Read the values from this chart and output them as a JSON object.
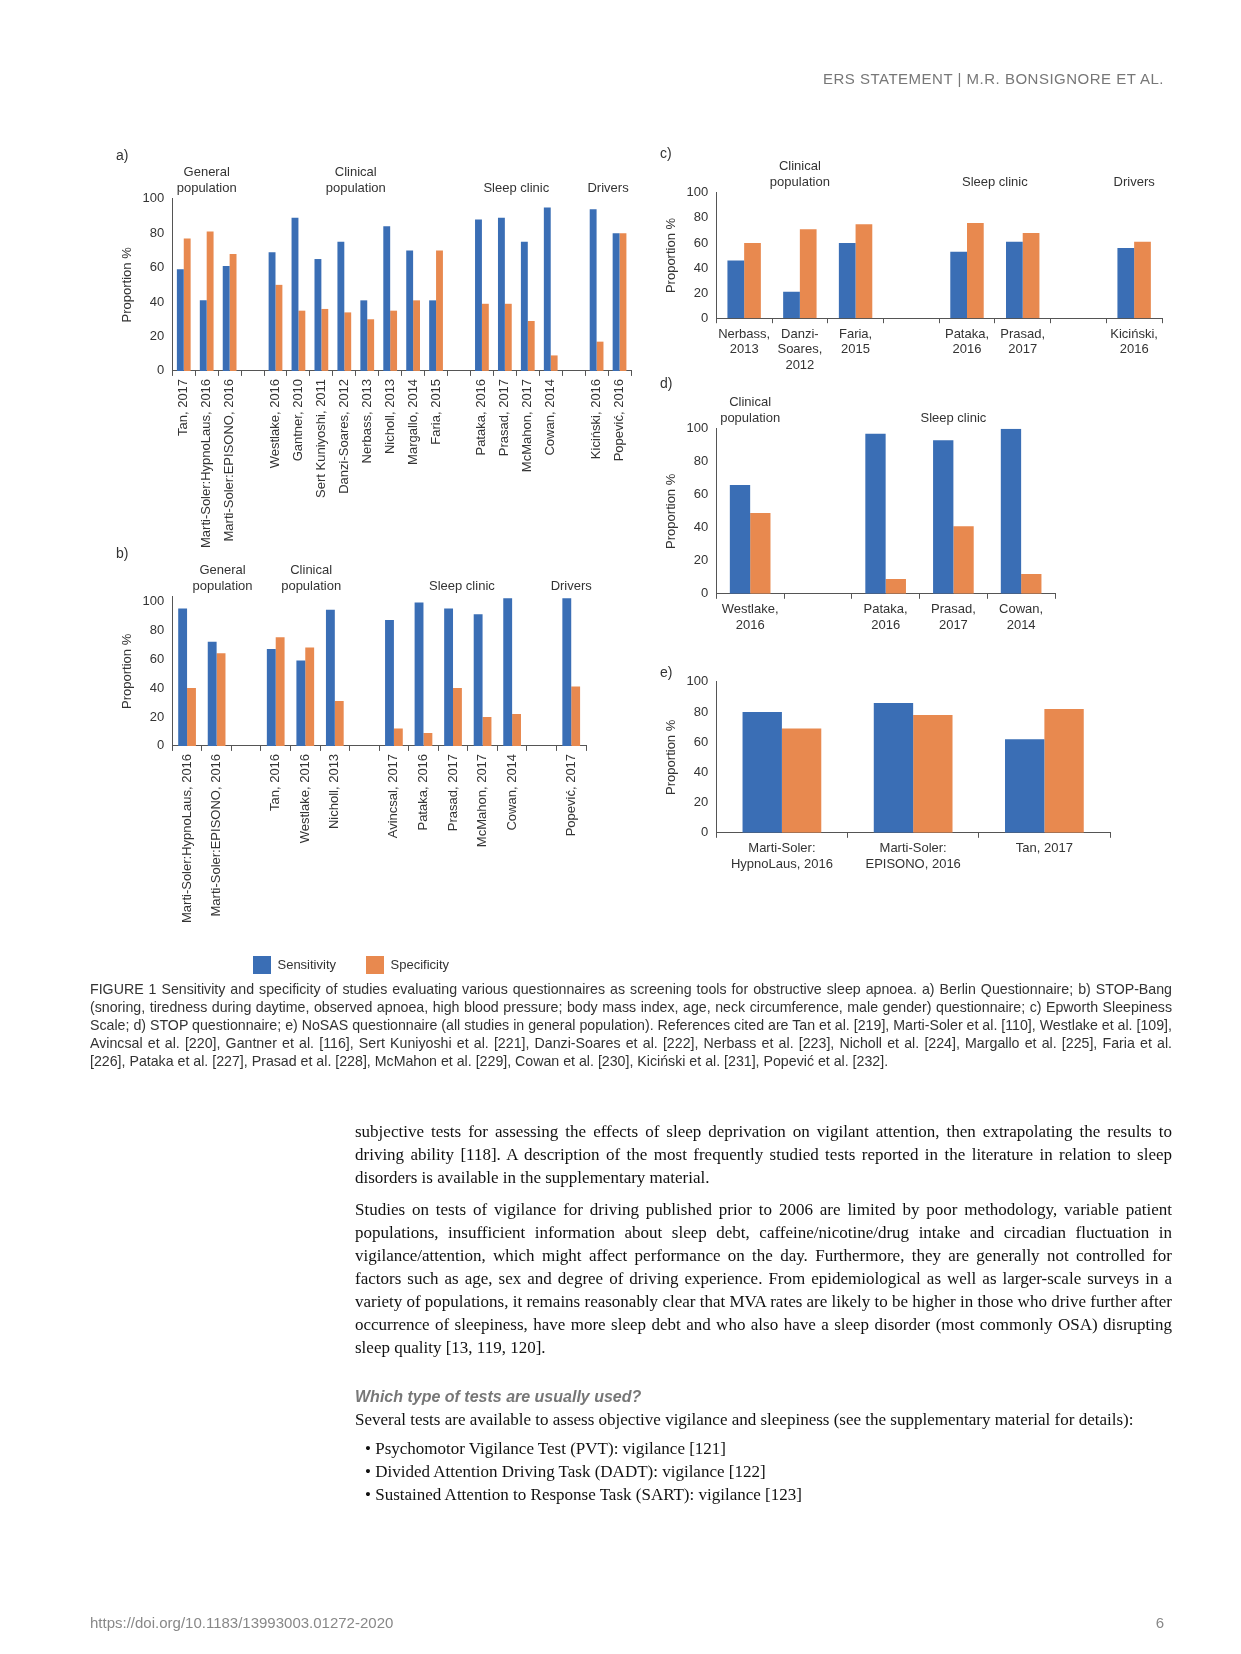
{
  "chart_data": [
    {
      "type": "bar",
      "title": "a)",
      "ylabel": "Proportion %",
      "ylim": [
        0,
        100
      ],
      "yticks": [
        0,
        20,
        40,
        60,
        80,
        100
      ],
      "categories": [
        "Tan, 2017",
        "Marti-Soler:HypnoLaus, 2016",
        "Marti-Soler:EPISONO, 2016",
        null,
        "Westlake, 2016",
        "Gantner, 2010",
        "Sert Kuniyoshi, 2011",
        "Danzi-Soares, 2012",
        "Nerbass, 2013",
        "Nicholl, 2013",
        "Margallo, 2014",
        "Faria, 2015",
        null,
        "Pataka, 2016",
        "Prasad, 2017",
        "McMahon, 2017",
        "Cowan, 2014",
        null,
        "Kiciński, 2016",
        "Popević, 2016"
      ],
      "series": [
        {
          "color": "#3a6eb5",
          "values": [
            59,
            41,
            61,
            null,
            69,
            89,
            65,
            75,
            41,
            84,
            70,
            41,
            null,
            88,
            89,
            75,
            95,
            null,
            94,
            80
          ]
        },
        {
          "color": "#e8894f",
          "values": [
            77,
            81,
            68,
            null,
            50,
            35,
            36,
            34,
            30,
            35,
            41,
            70,
            null,
            39,
            39,
            29,
            9,
            null,
            17,
            80
          ]
        }
      ],
      "annotations": [
        "General population",
        "Clinical population",
        "Sleep clinic",
        "Drivers"
      ]
    },
    {
      "type": "bar",
      "title": "b)",
      "ylabel": "Proportion %",
      "ylim": [
        0,
        103
      ],
      "yticks": [
        0,
        20,
        40,
        60,
        80,
        100
      ],
      "legend": "bottom",
      "categories": [
        "Marti-Soler:HypnoLaus, 2016",
        "Marti-Soler:EPISONO, 2016",
        null,
        "Tan, 2016",
        "Westlake, 2016",
        "Nicholl, 2013",
        null,
        "Avincsal, 2017",
        "Pataka, 2016",
        "Prasad, 2017",
        "McMahon, 2017",
        "Cowan, 2014",
        null,
        "Popević, 2017"
      ],
      "series": [
        {
          "name": "Sensitivity",
          "color": "#3a6eb5",
          "values": [
            95,
            72,
            null,
            67,
            59,
            94,
            null,
            87,
            99,
            95,
            91,
            102,
            null,
            102
          ]
        },
        {
          "name": "Specificity",
          "color": "#e8894f",
          "values": [
            40,
            64,
            null,
            75,
            68,
            31,
            null,
            12,
            9,
            40,
            20,
            22,
            null,
            41
          ]
        }
      ],
      "annotations": [
        "General population",
        "Clinical population",
        "Sleep clinic",
        "Drivers"
      ]
    },
    {
      "type": "bar",
      "title": "c)",
      "ylabel": "Proportion %",
      "ylim": [
        0,
        100
      ],
      "yticks": [
        0,
        20,
        40,
        60,
        80,
        100
      ],
      "categories": [
        "Nerbass, 2013",
        "Danzi-Soares, 2012",
        "Faria, 2015",
        null,
        "Pataka, 2016",
        "Prasad, 2017",
        null,
        "Kiciński, 2016"
      ],
      "series": [
        {
          "color": "#3a6eb5",
          "values": [
            46,
            21,
            60,
            null,
            53,
            61,
            null,
            56
          ]
        },
        {
          "color": "#e8894f",
          "values": [
            60,
            71,
            75,
            null,
            76,
            68,
            null,
            61
          ]
        }
      ],
      "annotations": [
        "Clinical population",
        "Sleep clinic",
        "Drivers"
      ]
    },
    {
      "type": "bar",
      "title": "d)",
      "ylabel": "Proportion %",
      "ylim": [
        0,
        100
      ],
      "yticks": [
        0,
        20,
        40,
        60,
        80,
        100
      ],
      "categories": [
        "Westlake, 2016",
        null,
        "Pataka, 2016",
        "Prasad, 2017",
        "Cowan, 2014"
      ],
      "series": [
        {
          "color": "#3a6eb5",
          "values": [
            66,
            null,
            97,
            93,
            100
          ]
        },
        {
          "color": "#e8894f",
          "values": [
            49,
            null,
            9,
            41,
            12
          ]
        }
      ],
      "annotations": [
        "Clinical population",
        "Sleep clinic"
      ]
    },
    {
      "type": "bar",
      "title": "e)",
      "ylabel": "Proportion %",
      "ylim": [
        0,
        100
      ],
      "yticks": [
        0,
        20,
        40,
        60,
        80,
        100
      ],
      "categories": [
        "Marti-Soler: HypnoLaus, 2016",
        "Marti-Soler: EPISONO, 2016",
        "Tan, 2017"
      ],
      "series": [
        {
          "color": "#3a6eb5",
          "values": [
            80,
            86,
            62
          ]
        },
        {
          "color": "#e8894f",
          "values": [
            69,
            78,
            82
          ]
        }
      ]
    },
    {
      "type": "other",
      "annotations": [
        "ERS STATEMENT | M.R. BONSIGNORE ET AL.",
        "FIGURE 1 Sensitivity and specificity of studies evaluating various questionnaires as screening tools for obstructive sleep apnoea. a) Berlin Questionnaire; b) STOP-Bang (snoring, tiredness during daytime, observed apnoea, high blood pressure; body mass index, age, neck circumference, male gender) questionnaire; c) Epworth Sleepiness Scale; d) STOP questionnaire; e) NoSAS questionnaire (all studies in general population). References cited are Tan et al. [219], Marti-Soler et al. [110], Westlake et al. [109], Avincsal et al. [220], Gantner et al. [116], Sert Kuniyoshi et al. [221], Danzi-Soares et al. [222], Nerbass et al. [223], Nicholl et al. [224], Margallo et al. [225], Faria et al. [226], Pataka et al. [227], Prasad et al. [228], McMahon et al. [229], Cowan et al. [230], Kiciński et al. [231], Popević et al. [232].",
        "subjective tests for assessing the effects of sleep deprivation on vigilant attention, then extrapolating the results to driving ability [118]. A description of the most frequently studied tests reported in the literature in relation to sleep disorders is available in the supplementary material.",
        "Studies on tests of vigilance for driving published prior to 2006 are limited by poor methodology, variable patient populations, insufficient information about sleep debt, caffeine/nicotine/drug intake and circadian fluctuation in vigilance/attention, which might affect performance on the day. Furthermore, they are generally not controlled for factors such as age, sex and degree of driving experience. From epidemiological as well as larger-scale surveys in a variety of populations, it remains reasonably clear that MVA rates are likely to be higher in those who drive further after occurrence of sleepiness, have more sleep debt and who also have a sleep disorder (most commonly OSA) disrupting sleep quality [13, 119, 120].",
        "Which type of tests are usually used?",
        "Several tests are available to assess objective vigilance and sleepiness (see the supplementary material for details):",
        "• Psychomotor Vigilance Test (PVT): vigilance [121]",
        "• Divided Attention Driving Task (DADT): vigilance [122]",
        "• Sustained Attention to Response Task (SART): vigilance [123]",
        "https://doi.org/10.1183/13993003.01272-2020",
        "6"
      ]
    }
  ]
}
